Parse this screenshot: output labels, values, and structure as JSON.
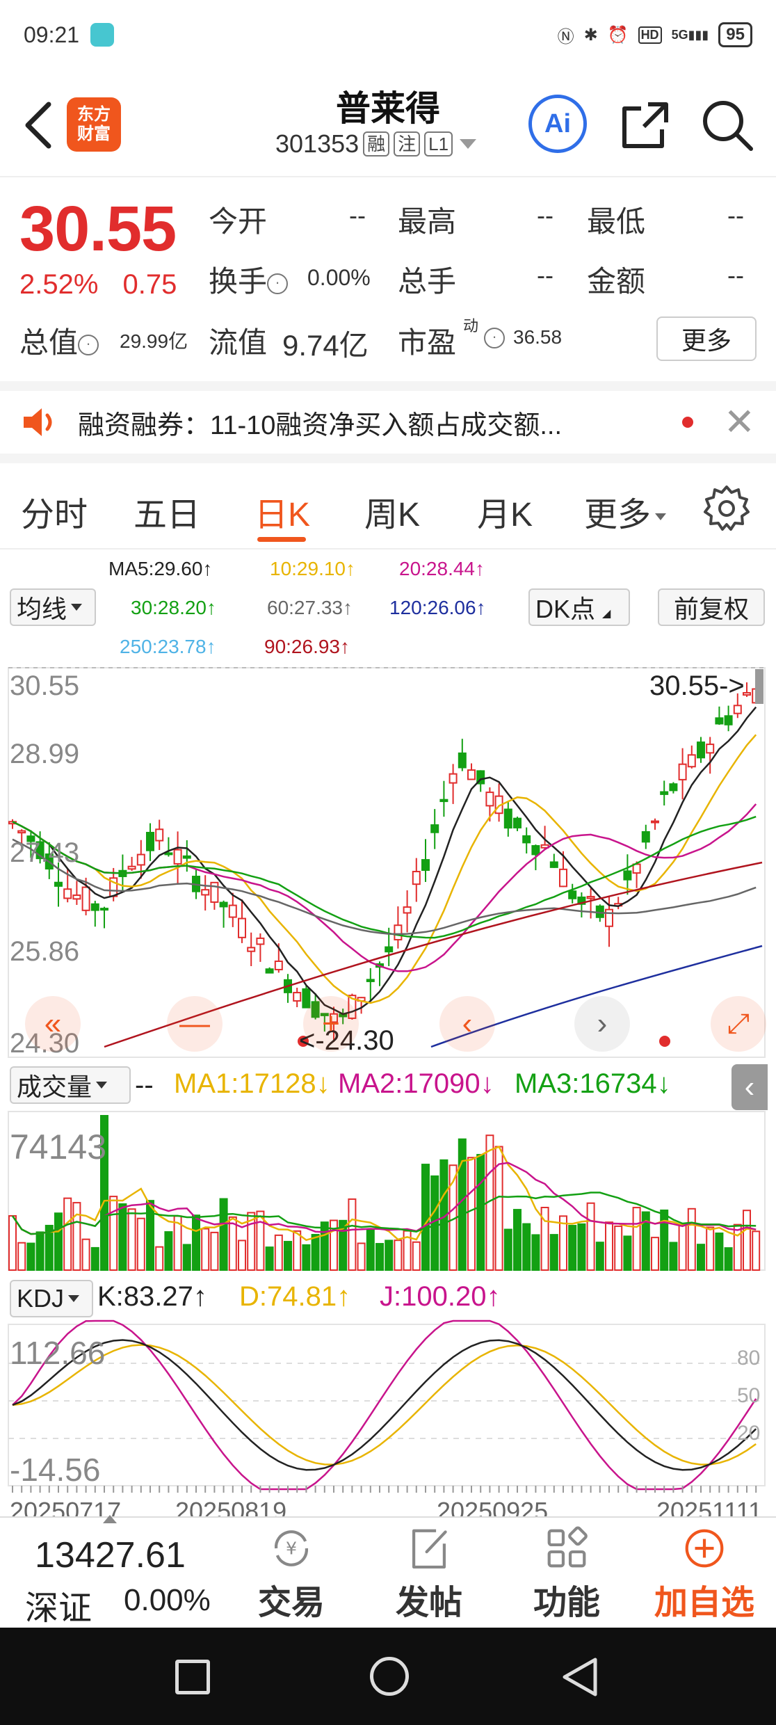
{
  "status_bar": {
    "time": "09:21",
    "battery": "95",
    "network": "5G"
  },
  "header": {
    "logo_line1": "东方",
    "logo_line2": "财富",
    "stock_name": "普莱得",
    "stock_code": "301353",
    "tags": [
      "融",
      "注",
      "L1"
    ],
    "ai_label": "Ai"
  },
  "quote": {
    "price": "30.55",
    "change_pct": "2.52%",
    "change_amt": "0.75",
    "open_label": "今开",
    "open_value": "--",
    "high_label": "最高",
    "high_value": "--",
    "low_label": "最低",
    "low_value": "--",
    "turnover_label": "换手",
    "turnover_value": "0.00%",
    "volume_label": "总手",
    "volume_value": "--",
    "amount_label": "金额",
    "amount_value": "--",
    "mktcap_label": "总值",
    "mktcap_value": "29.99亿",
    "float_label": "流值",
    "float_value": "9.74亿",
    "pe_label": "市盈",
    "pe_sup": "动",
    "pe_value": "36.58",
    "more_button": "更多"
  },
  "notice": {
    "text": "融资融券：11-10融资净买入额占成交额..."
  },
  "tabs": {
    "items": [
      "分时",
      "五日",
      "日K",
      "周K",
      "月K",
      "更多"
    ],
    "active": "日K"
  },
  "ma_legend": {
    "select": "均线",
    "ma5": "MA5:29.60↑",
    "ma10": "10:29.10↑",
    "ma20": "20:28.44↑",
    "ma30": "30:28.20↑",
    "ma60": "60:27.33↑",
    "ma120": "120:26.06↑",
    "ma250": "250:23.78↑",
    "ma90": "90:26.93↑",
    "dk_select": "DK点",
    "adjust_select": "前复权",
    "colors": {
      "ma5": "#222222",
      "ma10": "#e8b400",
      "ma20": "#c8148c",
      "ma30": "#13a013",
      "ma60": "#666666",
      "ma120": "#1e2f9e",
      "ma250": "#4fb3e6",
      "ma90": "#b0141e"
    }
  },
  "price_chart": {
    "y_labels": [
      "30.55",
      "28.99",
      "27.43",
      "25.86",
      "24.30"
    ],
    "last_price_marker": "30.55->",
    "low_marker": "<-24.30"
  },
  "volume_legend": {
    "select": "成交量",
    "dash": "--",
    "ma1": "MA1:17128↓",
    "ma2": "MA2:17090↓",
    "ma3": "MA3:16734↓",
    "max_label": "74143"
  },
  "kdj_legend": {
    "select": "KDJ",
    "k": "K:83.27↑",
    "d": "D:74.81↑",
    "j": "J:100.20↑",
    "top_label": "112.66",
    "bottom_label": "-14.56",
    "ref_80": "80",
    "ref_50": "50",
    "ref_20": "20"
  },
  "x_axis": {
    "dates": [
      "20250717",
      "20250819",
      "20250925",
      "20251111"
    ]
  },
  "bottom_bar": {
    "index_value": "13427.61",
    "index_name": "深证",
    "index_pct": "0.00%",
    "nav": [
      "交易",
      "发帖",
      "功能",
      "加自选"
    ]
  }
}
